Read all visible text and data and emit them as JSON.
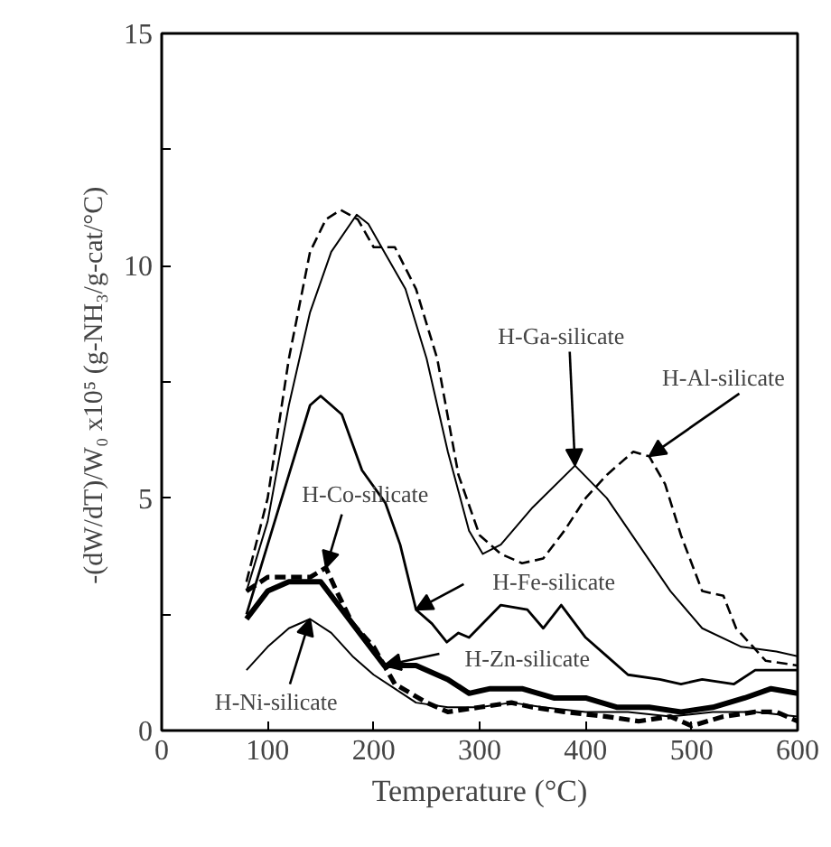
{
  "chart_data": {
    "type": "line",
    "xlabel": "Temperature (°C)",
    "ylabel": "-(dW/dT)/W₀ x10⁵  (g-NH₃/g-cat/°C)",
    "xlim": [
      0,
      600
    ],
    "xticks": [
      0,
      100,
      200,
      300,
      400,
      500,
      600
    ],
    "ylim": [
      0,
      15
    ],
    "yticks": [
      0,
      {
        "value": 2.5,
        "label": null
      },
      5,
      {
        "value": 7.5,
        "label": null
      },
      10,
      {
        "value": 12.5,
        "label": null
      },
      15
    ],
    "grid": false,
    "marker": "none",
    "series": [
      {
        "color": "#000000",
        "line_style": "solid",
        "x": [
          80,
          100,
          120,
          140,
          160,
          184,
          195,
          210,
          230,
          250,
          270,
          290,
          303,
          320,
          350,
          390,
          420,
          450,
          480,
          510,
          547,
          580,
          600
        ],
        "values": [
          3.0,
          4.5,
          7.0,
          9.0,
          10.3,
          11.1,
          10.9,
          10.3,
          9.5,
          8.0,
          6.0,
          4.3,
          3.8,
          4.0,
          4.8,
          5.7,
          5.0,
          4.0,
          3.0,
          2.2,
          1.8,
          1.7,
          1.6
        ]
      },
      {
        "color": "#000000",
        "line_style": "dashed",
        "x": [
          80,
          100,
          120,
          140,
          155,
          169,
          185,
          200,
          220,
          240,
          260,
          280,
          300,
          320,
          340,
          360,
          380,
          400,
          420,
          445,
          460,
          475,
          490,
          510,
          530,
          542,
          570,
          600
        ],
        "values": [
          3.2,
          5.0,
          8.0,
          10.3,
          11.0,
          11.2,
          11.0,
          10.4,
          10.4,
          9.5,
          8.0,
          5.5,
          4.2,
          3.8,
          3.6,
          3.7,
          4.3,
          5.0,
          5.5,
          6.0,
          5.9,
          5.3,
          4.2,
          3.0,
          2.9,
          2.2,
          1.5,
          1.4
        ]
      },
      {
        "color": "#000000",
        "line_style": "solid",
        "x": [
          80,
          100,
          120,
          140,
          150,
          170,
          189,
          211,
          225,
          240,
          255,
          269,
          280,
          290,
          320,
          345,
          360,
          377,
          400,
          420,
          440,
          470,
          490,
          510,
          540,
          560,
          600
        ],
        "values": [
          2.5,
          4.0,
          5.5,
          7.0,
          7.2,
          6.8,
          5.6,
          4.9,
          4.0,
          2.6,
          2.3,
          1.9,
          2.1,
          2.0,
          2.7,
          2.6,
          2.2,
          2.7,
          2.0,
          1.6,
          1.2,
          1.1,
          1.0,
          1.1,
          1.0,
          1.3,
          1.3
        ]
      },
      {
        "color": "#000000",
        "line_style": "dashed",
        "x": [
          80,
          100,
          120,
          140,
          155,
          165,
          180,
          200,
          220,
          250,
          270,
          300,
          330,
          350,
          380,
          420,
          450,
          480,
          500,
          530,
          560,
          580,
          600
        ],
        "values": [
          3.0,
          3.3,
          3.3,
          3.3,
          3.5,
          3.0,
          2.3,
          1.8,
          1.0,
          0.6,
          0.4,
          0.5,
          0.6,
          0.5,
          0.4,
          0.3,
          0.2,
          0.3,
          0.1,
          0.3,
          0.4,
          0.4,
          0.2
        ]
      },
      {
        "color": "#000000",
        "line_style": "solid",
        "x": [
          80,
          100,
          120,
          150,
          170,
          190,
          210,
          240,
          270,
          290,
          310,
          340,
          370,
          400,
          430,
          460,
          490,
          520,
          550,
          575,
          600
        ],
        "values": [
          2.4,
          3.0,
          3.2,
          3.2,
          2.6,
          2.0,
          1.4,
          1.4,
          1.1,
          0.8,
          0.9,
          0.9,
          0.7,
          0.7,
          0.5,
          0.5,
          0.4,
          0.5,
          0.7,
          0.9,
          0.8
        ]
      },
      {
        "color": "#000000",
        "line_style": "solid",
        "x": [
          80,
          100,
          120,
          140,
          160,
          180,
          200,
          220,
          240,
          270,
          300,
          330,
          360,
          400,
          440,
          480,
          520,
          560,
          600
        ],
        "values": [
          1.3,
          1.8,
          2.2,
          2.4,
          2.1,
          1.6,
          1.2,
          0.9,
          0.6,
          0.5,
          0.5,
          0.6,
          0.5,
          0.4,
          0.4,
          0.3,
          0.4,
          0.4,
          0.3
        ]
      }
    ],
    "annotations": [
      {
        "text": "H-Ga-silicate",
        "x": 390,
        "y": 5.7
      },
      {
        "text": "H-Al-silicate",
        "x": 460,
        "y": 5.9
      },
      {
        "text": "H-Co-silicate",
        "x": 155,
        "y": 3.5
      },
      {
        "text": "H-Fe-silicate",
        "x": 240,
        "y": 2.6
      },
      {
        "text": "H-Zn-silicate",
        "x": 210,
        "y": 1.4
      },
      {
        "text": "H-Ni-silicate",
        "x": 140,
        "y": 2.4
      }
    ]
  }
}
